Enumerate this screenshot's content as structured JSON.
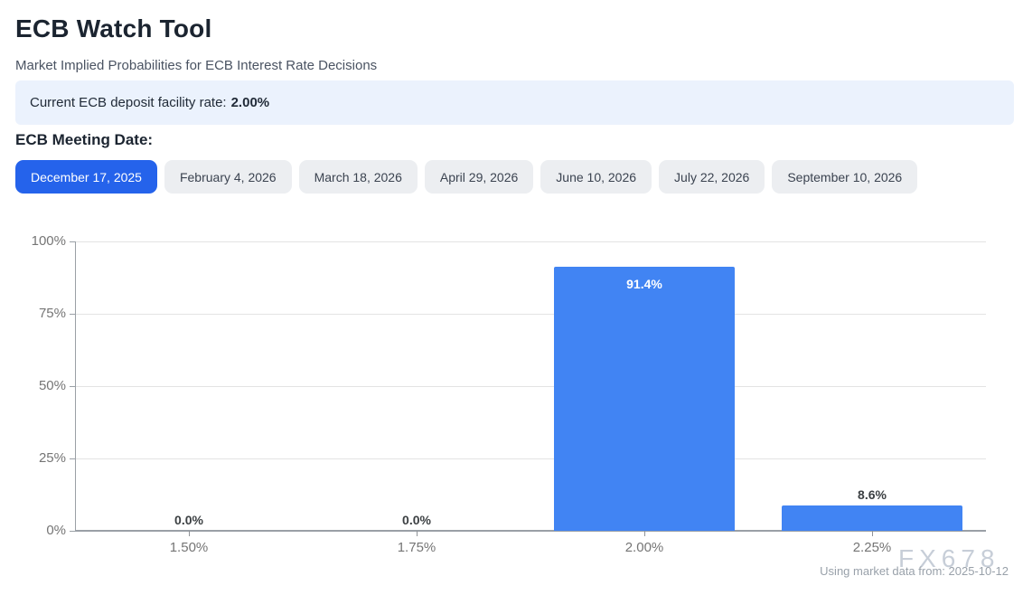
{
  "header": {
    "title": "ECB Watch Tool",
    "subtitle": "Market Implied Probabilities for ECB Interest Rate Decisions"
  },
  "banner": {
    "label_text": "Current ECB deposit facility rate:",
    "rate_value": "2.00%"
  },
  "meeting_selector": {
    "label": "ECB Meeting Date:",
    "selected_index": 0,
    "dates": [
      "December 17, 2025",
      "February 4, 2026",
      "March 18, 2026",
      "April 29, 2026",
      "June 10, 2026",
      "July 22, 2026",
      "September 10, 2026"
    ]
  },
  "chart_data": {
    "type": "bar",
    "categories": [
      "1.50%",
      "1.75%",
      "2.00%",
      "2.25%"
    ],
    "values": [
      0.0,
      0.0,
      91.4,
      8.6
    ],
    "value_labels": [
      "0.0%",
      "0.0%",
      "91.4%",
      "8.6%"
    ],
    "title": "",
    "xlabel": "",
    "ylabel": "",
    "ylim": [
      0,
      100
    ],
    "y_ticks": [
      "0%",
      "25%",
      "50%",
      "75%",
      "100%"
    ],
    "grid": true,
    "legend": "none",
    "bar_color": "#4184f3"
  },
  "footer": {
    "watermark": "FX678",
    "note": "Using market data from: 2025-10-12"
  },
  "colors": {
    "accent": "#2563eb",
    "banner_bg": "#ebf2fd",
    "bar": "#4184f3"
  }
}
